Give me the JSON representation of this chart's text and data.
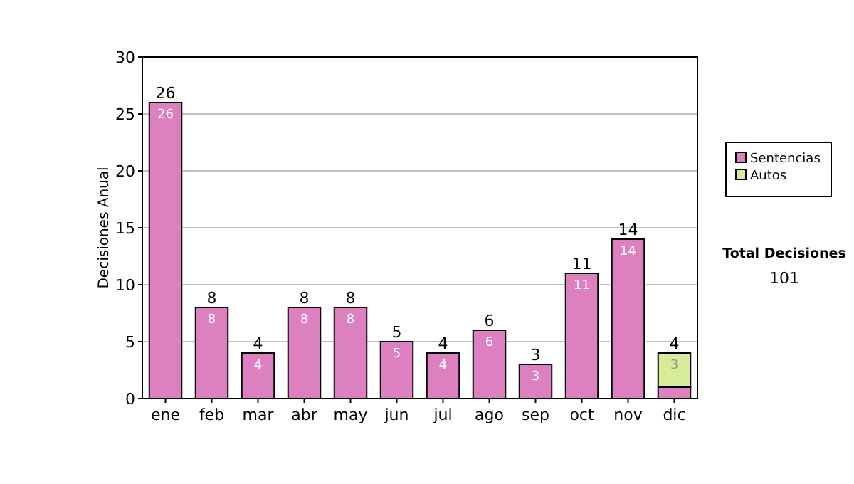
{
  "chart_data": {
    "type": "bar",
    "stacked": true,
    "ylabel": "Decisiones Anual",
    "categories": [
      "ene",
      "feb",
      "mar",
      "abr",
      "may",
      "jun",
      "jul",
      "ago",
      "sep",
      "oct",
      "nov",
      "dic"
    ],
    "series": [
      {
        "name": "Sentencias",
        "color": "#dd80c0",
        "values": [
          26,
          8,
          4,
          8,
          8,
          5,
          4,
          6,
          3,
          11,
          14,
          1
        ],
        "value_labels": [
          "26",
          "8",
          "4",
          "8",
          "8",
          "5",
          "4",
          "6",
          "3",
          "11",
          "14",
          null
        ]
      },
      {
        "name": "Autos",
        "color": "#d6ec98",
        "values": [
          null,
          null,
          null,
          null,
          null,
          null,
          null,
          null,
          null,
          null,
          null,
          3
        ],
        "value_labels": [
          null,
          null,
          null,
          null,
          null,
          null,
          null,
          null,
          null,
          null,
          null,
          "3"
        ]
      }
    ],
    "totals": [
      "26",
      "8",
      "4",
      "8",
      "8",
      "5",
      "4",
      "6",
      "3",
      "11",
      "14",
      "4"
    ],
    "ylim": [
      0,
      30
    ],
    "yticks": [
      0,
      5,
      10,
      15,
      20,
      25,
      30
    ],
    "grid": "y",
    "legend": "right",
    "annotations": [
      "Total Decisiones",
      "101"
    ]
  }
}
